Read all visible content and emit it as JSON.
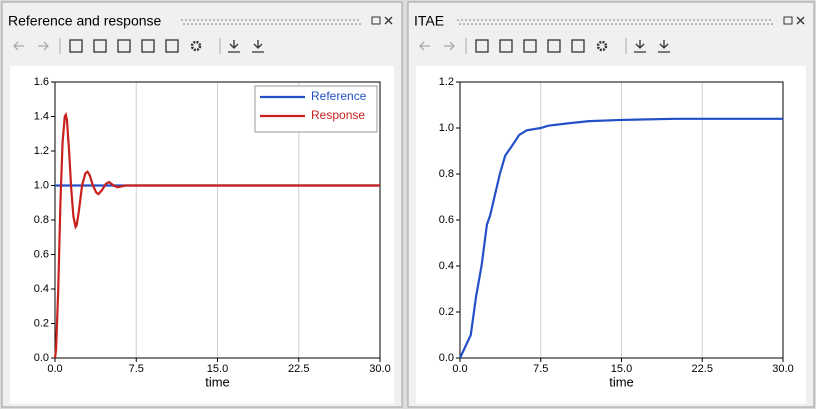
{
  "chart_data": [
    {
      "type": "line",
      "title": "Reference and response",
      "x_label": "time",
      "xlim": [
        0,
        30
      ],
      "ylim": [
        0,
        1.6
      ],
      "xticks": [
        {
          "value": 0,
          "label": "0.0"
        },
        7.5,
        {
          "value": 15,
          "label": "15.0"
        },
        22.5,
        {
          "value": 30,
          "label": "30.0"
        }
      ],
      "yticks": [
        {
          "value": 0,
          "label": "0.0"
        },
        0.2,
        0.4,
        0.6,
        0.8,
        {
          "value": 1,
          "label": "1.0"
        },
        1.2,
        1.4,
        1.6
      ],
      "grid": "x",
      "legend": "upper right",
      "series": [
        {
          "name": "Reference",
          "color": "#2350c8",
          "x": [
            0,
            30
          ],
          "values": [
            1,
            1
          ]
        },
        {
          "name": "Response",
          "color": "#c8201c",
          "x": [
            0,
            0.1,
            0.3,
            0.5,
            0.7,
            0.9,
            1.0,
            1.1,
            1.3,
            1.5,
            1.7,
            1.9,
            2.0,
            2.2,
            2.5,
            2.8,
            3.0,
            3.2,
            3.5,
            3.8,
            4.0,
            4.3,
            4.7,
            5.0,
            5.4,
            5.8,
            6.5,
            7.5,
            30
          ],
          "values": [
            0,
            0.05,
            0.4,
            0.9,
            1.25,
            1.4,
            1.41,
            1.38,
            1.2,
            0.98,
            0.82,
            0.76,
            0.77,
            0.85,
            1.0,
            1.07,
            1.08,
            1.06,
            1.0,
            0.96,
            0.95,
            0.97,
            1.01,
            1.02,
            1.0,
            0.99,
            1.0,
            1.0,
            1.0
          ]
        }
      ]
    },
    {
      "type": "line",
      "title": "ITAE",
      "x_label": "time",
      "xlim": [
        0,
        30
      ],
      "ylim": [
        0,
        1.2
      ],
      "xticks": [
        {
          "value": 0,
          "label": "0.0"
        },
        7.5,
        {
          "value": 15,
          "label": "15.0"
        },
        22.5,
        {
          "value": 30,
          "label": "30.0"
        }
      ],
      "yticks": [
        {
          "value": 0,
          "label": "0.0"
        },
        0.2,
        0.4,
        0.6,
        0.8,
        {
          "value": 1,
          "label": "1.0"
        },
        1.2
      ],
      "grid": "x",
      "series": [
        {
          "color": "#2350c8",
          "x": [
            0,
            0.5,
            1,
            1.5,
            2,
            2.5,
            2.8,
            3.2,
            3.7,
            4.2,
            4.8,
            5.5,
            6.2,
            7.5,
            8.2,
            10,
            12,
            15,
            20,
            30
          ],
          "values": [
            0,
            0.05,
            0.1,
            0.27,
            0.4,
            0.58,
            0.62,
            0.7,
            0.8,
            0.88,
            0.92,
            0.97,
            0.99,
            1.0,
            1.01,
            1.02,
            1.03,
            1.035,
            1.04,
            1.04
          ]
        }
      ]
    }
  ]
}
